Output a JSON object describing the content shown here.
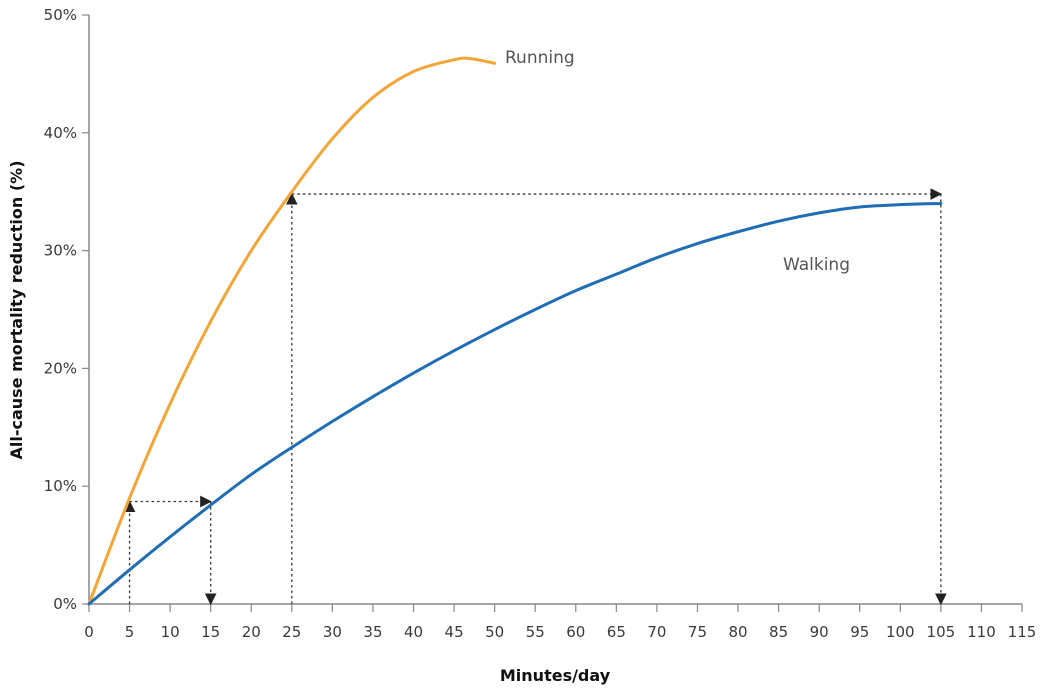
{
  "chart_data": {
    "type": "line",
    "title": "",
    "xlabel": "Minutes/day",
    "ylabel": "All-cause mortality reduction (%)",
    "xlim": [
      0,
      115
    ],
    "ylim": [
      0,
      50
    ],
    "x_ticks": [
      "0",
      "5",
      "10",
      "15",
      "20",
      "25",
      "30",
      "35",
      "40",
      "45",
      "50",
      "55",
      "60",
      "65",
      "70",
      "75",
      "80",
      "85",
      "90",
      "95",
      "100",
      "105",
      "110",
      "115"
    ],
    "y_ticks": [
      "0%",
      "10%",
      "20%",
      "30%",
      "40%",
      "50%"
    ],
    "grid": false,
    "legend": "inline labels",
    "series": [
      {
        "name": "Running",
        "color": "#f5a436",
        "x": [
          0,
          5,
          10,
          15,
          20,
          25,
          30,
          35,
          40,
          45,
          47,
          50
        ],
        "y": [
          0,
          9,
          17,
          24,
          30,
          35,
          39.5,
          43,
          45.2,
          46.2,
          46.3,
          45.9
        ]
      },
      {
        "name": "Walking",
        "color": "#1f6db6",
        "x": [
          0,
          5,
          10,
          15,
          20,
          25,
          30,
          35,
          40,
          45,
          50,
          55,
          60,
          65,
          70,
          75,
          80,
          85,
          90,
          95,
          100,
          105
        ],
        "y": [
          0,
          2.9,
          5.7,
          8.4,
          11,
          13.3,
          15.5,
          17.6,
          19.6,
          21.5,
          23.3,
          25,
          26.6,
          28,
          29.4,
          30.6,
          31.6,
          32.5,
          33.2,
          33.7,
          33.9,
          34
        ]
      }
    ],
    "annotations": [
      {
        "type": "dotted-arrow",
        "from": [
          5,
          0
        ],
        "to": [
          5,
          8.7
        ]
      },
      {
        "type": "dotted-arrow",
        "from": [
          5,
          8.7
        ],
        "to": [
          15,
          8.7
        ]
      },
      {
        "type": "dotted-arrow",
        "from": [
          15,
          8.7
        ],
        "to": [
          15,
          0
        ]
      },
      {
        "type": "dotted-arrow",
        "from": [
          25,
          0
        ],
        "to": [
          25,
          34.8
        ]
      },
      {
        "type": "dotted-arrow",
        "from": [
          25,
          34.8
        ],
        "to": [
          105,
          34.8
        ]
      },
      {
        "type": "dotted-arrow",
        "from": [
          105,
          34.8
        ],
        "to": [
          105,
          0
        ]
      }
    ]
  }
}
